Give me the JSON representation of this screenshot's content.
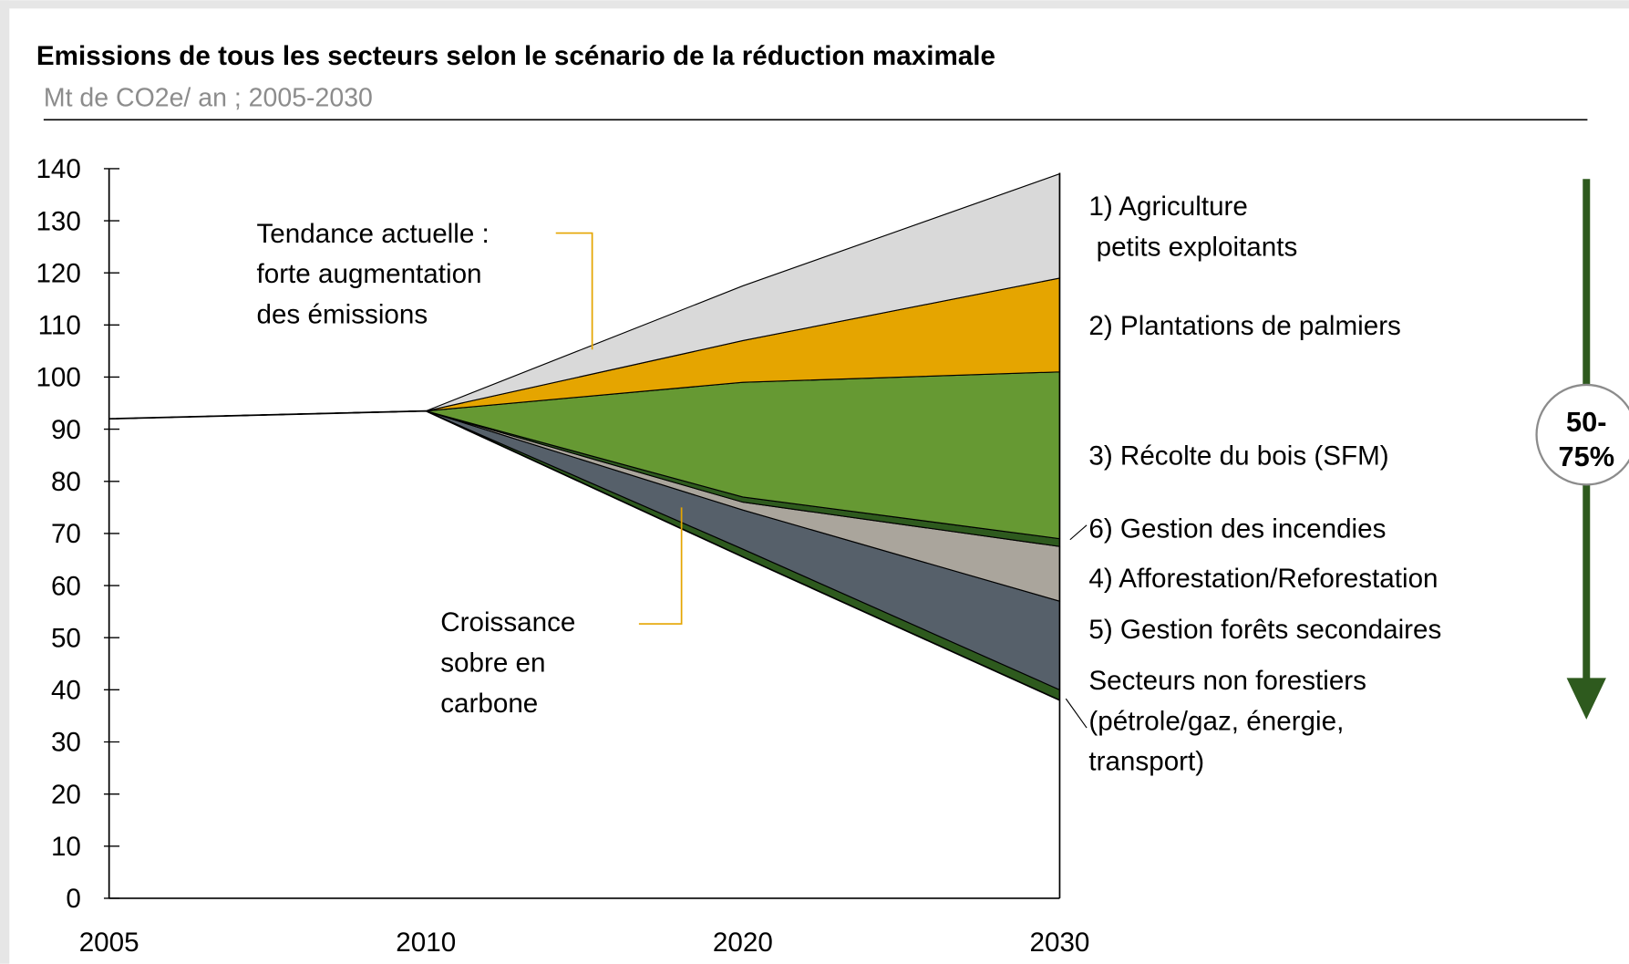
{
  "chart_data": {
    "type": "stacked_area",
    "title": "Emissions de tous les secteurs selon le scénario de la réduction maximale",
    "subtitle": "Mt de CO2e/ an ; 2005-2030",
    "categories": [
      "2005",
      "2010",
      "2020",
      "2030"
    ],
    "ylim": [
      0,
      140
    ],
    "yticks": [
      0,
      10,
      20,
      30,
      40,
      50,
      60,
      70,
      80,
      90,
      100,
      110,
      120,
      130,
      140
    ],
    "base": {
      "color": "#ffffff",
      "values": [
        92,
        93.5,
        65.5,
        38
      ]
    },
    "series": [
      {
        "name": "Secteurs non forestiers\n(pétrole/gaz, énergie,\ntransport)",
        "color": "#2e5a1e",
        "values": [
          0,
          0,
          1.5,
          2
        ]
      },
      {
        "name": "5) Gestion forêts secondaires",
        "color": "#56606a",
        "values": [
          0,
          0,
          7.5,
          17
        ]
      },
      {
        "name": "4) Afforestation/Reforestation",
        "color": "#aaa59c",
        "values": [
          0,
          0,
          1.5,
          10.5
        ]
      },
      {
        "name": "6) Gestion des incendies",
        "color": "#2e5a1e",
        "values": [
          0,
          0,
          1,
          1.5
        ]
      },
      {
        "name": "3) Récolte du bois (SFM)",
        "color": "#669933",
        "values": [
          0,
          0,
          22,
          32
        ]
      },
      {
        "name": "2) Plantations de palmiers",
        "color": "#e5a500",
        "values": [
          0,
          0,
          8,
          18
        ]
      },
      {
        "name": "1) Agriculture\n petits exploitants",
        "color": "#d9d9d9",
        "values": [
          0,
          0,
          10.5,
          20
        ]
      }
    ],
    "annotations": [
      "Tendance actuelle :\nforte augmentation\ndes émissions",
      "Croissance\nsobre en\ncarbone",
      "50-\n75%"
    ]
  }
}
